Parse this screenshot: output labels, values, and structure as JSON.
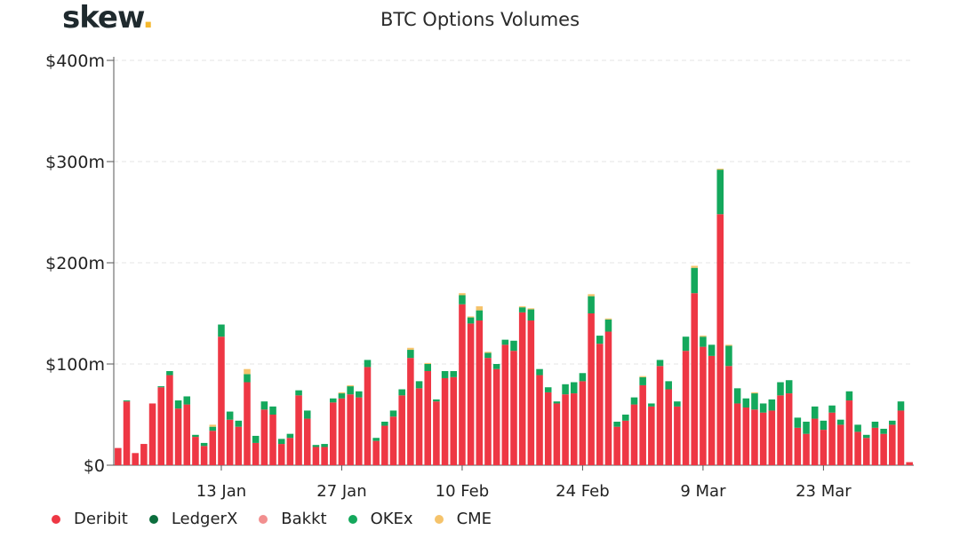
{
  "logo": {
    "text": "skew",
    "dot": "."
  },
  "chart_data": {
    "type": "bar",
    "stacked": true,
    "title": "BTC Options Volumes",
    "ylabel": "",
    "xlabel": "",
    "ylim": [
      0,
      400
    ],
    "y_ticks": [
      0,
      100,
      200,
      300,
      400
    ],
    "y_tick_labels": [
      "$0",
      "$100m",
      "$200m",
      "$300m",
      "$400m"
    ],
    "x_tick_labels": [
      {
        "label": "13 Jan",
        "index": 12
      },
      {
        "label": "27 Jan",
        "index": 26
      },
      {
        "label": "10 Feb",
        "index": 40
      },
      {
        "label": "24 Feb",
        "index": 54
      },
      {
        "label": "9 Mar",
        "index": 68
      },
      {
        "label": "23 Mar",
        "index": 82
      }
    ],
    "categories_note": "daily, 1 Jan to 2 Apr",
    "legend_position": "bottom-left",
    "series": [
      {
        "name": "Deribit",
        "color": "#ee3744",
        "values": [
          17,
          63,
          12,
          21,
          61,
          77,
          89,
          56,
          60,
          28,
          19,
          34,
          127,
          45,
          38,
          82,
          22,
          55,
          50,
          21,
          27,
          69,
          46,
          18,
          18,
          62,
          66,
          70,
          67,
          97,
          24,
          39,
          48,
          69,
          106,
          76,
          93,
          63,
          86,
          87,
          159,
          140,
          143,
          106,
          95,
          119,
          113,
          151,
          143,
          89,
          72,
          61,
          70,
          71,
          83,
          150,
          120,
          132,
          38,
          44,
          60,
          79,
          58,
          98,
          75,
          58,
          113,
          170,
          117,
          108,
          248,
          98,
          61,
          57,
          55,
          52,
          54,
          69,
          71,
          37,
          31,
          46,
          35,
          52,
          40,
          64,
          33,
          27,
          37,
          31,
          40,
          54,
          3
        ]
      },
      {
        "name": "LedgerX",
        "color": "#0c6e3d",
        "values": [
          0,
          0,
          0,
          0,
          0,
          0,
          0,
          0,
          0,
          0,
          0,
          0,
          0,
          0,
          0,
          0,
          0,
          0,
          0,
          0,
          0,
          0,
          0,
          0,
          0,
          0,
          0,
          0,
          0,
          0,
          0,
          0,
          0,
          0,
          0,
          0,
          0,
          0,
          0,
          0,
          0,
          0,
          0,
          0,
          0,
          0,
          0,
          0,
          0,
          0,
          0,
          0,
          0,
          0,
          0,
          0,
          0,
          0,
          0,
          0,
          0,
          0,
          0,
          0,
          0,
          0,
          0,
          0,
          0,
          0,
          0,
          0,
          0,
          0,
          0,
          0,
          0,
          0,
          0,
          0,
          0,
          0,
          0,
          0,
          0,
          0,
          0,
          0,
          0,
          0,
          0,
          0,
          0
        ]
      },
      {
        "name": "Bakkt",
        "color": "#f28f8f",
        "values": [
          0,
          0,
          0,
          0,
          0,
          0,
          0,
          0,
          0,
          0,
          0,
          0,
          0,
          0,
          0,
          0,
          0,
          0,
          0,
          0,
          0,
          0,
          0,
          0,
          0,
          0,
          0,
          0,
          0,
          0,
          0,
          0,
          0,
          0,
          0,
          0,
          0,
          0,
          0,
          0,
          0,
          0,
          0,
          0,
          0,
          0,
          0,
          0,
          0,
          0,
          0,
          0,
          0,
          0,
          0,
          0,
          0,
          0,
          0,
          0,
          0,
          0,
          0,
          0,
          0,
          0,
          0,
          0,
          0,
          0,
          0,
          0,
          0,
          0,
          0,
          0,
          0,
          0,
          0,
          0,
          0,
          0,
          0,
          0,
          0,
          0,
          0,
          0,
          0,
          0,
          0,
          0,
          0
        ]
      },
      {
        "name": "OKEx",
        "color": "#14a85c",
        "values": [
          0,
          1,
          0,
          0,
          0,
          1,
          4,
          8,
          8,
          2,
          3,
          4,
          12,
          8,
          6,
          8,
          7,
          8,
          8,
          5,
          4,
          5,
          8,
          2,
          3,
          4,
          5,
          8,
          6,
          7,
          3,
          4,
          6,
          6,
          8,
          7,
          7,
          2,
          7,
          6,
          9,
          6,
          10,
          5,
          5,
          5,
          10,
          5,
          11,
          6,
          5,
          2,
          10,
          11,
          8,
          17,
          8,
          12,
          5,
          6,
          7,
          8,
          3,
          6,
          8,
          5,
          14,
          25,
          10,
          11,
          44,
          20,
          15,
          9,
          16,
          9,
          11,
          13,
          13,
          10,
          12,
          12,
          9,
          7,
          5,
          9,
          7,
          3,
          6,
          5,
          4,
          9,
          0
        ]
      },
      {
        "name": "CME",
        "color": "#f5c36b",
        "values": [
          0,
          0,
          0,
          0,
          0,
          0,
          0,
          0,
          0,
          0,
          0,
          2,
          0,
          0,
          0,
          5,
          0,
          0,
          0,
          0,
          0,
          0,
          0,
          0,
          0,
          0,
          1,
          1,
          0,
          0,
          0,
          0,
          0,
          0,
          2,
          0,
          1,
          0,
          0,
          0,
          2,
          1,
          4,
          1,
          0,
          0,
          0,
          1,
          1,
          0,
          0,
          0,
          0,
          0,
          0,
          2,
          0,
          1,
          0,
          0,
          0,
          1,
          0,
          0,
          0,
          0,
          0,
          2,
          1,
          0,
          1,
          1,
          0,
          0,
          1,
          0,
          0,
          0,
          0,
          0,
          0,
          0,
          0,
          0,
          0,
          0,
          0,
          0,
          0,
          0,
          0,
          0,
          0
        ]
      }
    ]
  }
}
